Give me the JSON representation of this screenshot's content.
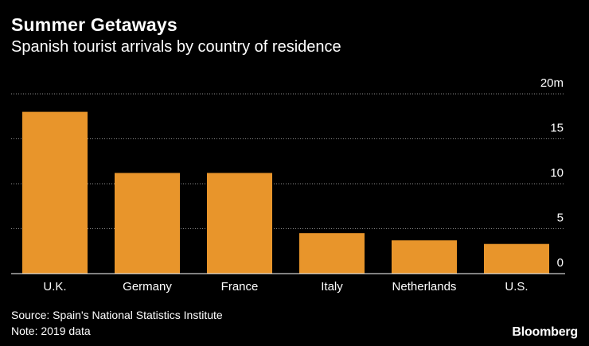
{
  "title": "Summer Getaways",
  "subtitle": "Spanish tourist arrivals by country of residence",
  "source": "Source: Spain's National Statistics Institute",
  "note": "Note: 2019 data",
  "brand": "Bloomberg",
  "colors": {
    "bar": "#e8952b",
    "background": "#000000",
    "text": "#ffffff",
    "grid": "#8a8a8a"
  },
  "chart_data": {
    "type": "bar",
    "title": "Summer Getaways",
    "subtitle": "Spanish tourist arrivals by country of residence",
    "xlabel": "",
    "ylabel": "",
    "unit": "m",
    "categories": [
      "U.K.",
      "Germany",
      "France",
      "Italy",
      "Netherlands",
      "U.S."
    ],
    "values": [
      18.0,
      11.2,
      11.2,
      4.5,
      3.7,
      3.3
    ],
    "ylim": [
      0,
      20
    ],
    "yticks": [
      "0",
      "5",
      "10",
      "15",
      "20m"
    ],
    "ytick_values": [
      0,
      5,
      10,
      15,
      20
    ],
    "y_axis_side": "right",
    "grid": true
  }
}
